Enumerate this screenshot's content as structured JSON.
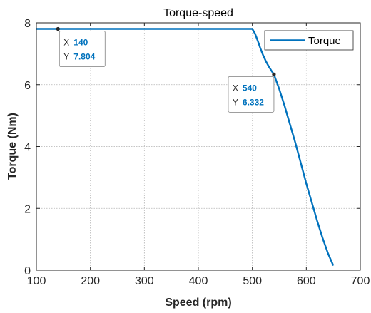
{
  "chart_data": {
    "type": "line",
    "title": "Torque-speed",
    "xlabel": "Speed (rpm)",
    "ylabel": "Torque (Nm)",
    "xlim": [
      100,
      700
    ],
    "ylim": [
      0,
      8
    ],
    "xticks": [
      100,
      200,
      300,
      400,
      500,
      600,
      700
    ],
    "yticks": [
      0,
      2,
      4,
      6,
      8
    ],
    "grid": true,
    "legend_position": "top-right",
    "series": [
      {
        "name": "Torque",
        "color": "#0072bd",
        "x": [
          100,
          140,
          200,
          300,
          400,
          500,
          505,
          510,
          515,
          520,
          525,
          530,
          535,
          540,
          550,
          560,
          570,
          580,
          590,
          600,
          610,
          620,
          630,
          640,
          650
        ],
        "y": [
          7.804,
          7.804,
          7.804,
          7.804,
          7.804,
          7.804,
          7.65,
          7.42,
          7.17,
          6.95,
          6.76,
          6.6,
          6.46,
          6.332,
          5.85,
          5.3,
          4.7,
          4.1,
          3.45,
          2.8,
          2.2,
          1.6,
          1.05,
          0.55,
          0.15
        ]
      }
    ],
    "datatips": [
      {
        "x": 140,
        "y": 7.804,
        "x_label": "X",
        "y_label": "Y",
        "x_text": "140",
        "y_text": "7.804"
      },
      {
        "x": 540,
        "y": 6.332,
        "x_label": "X",
        "y_label": "Y",
        "x_text": "540",
        "y_text": "6.332"
      }
    ]
  }
}
